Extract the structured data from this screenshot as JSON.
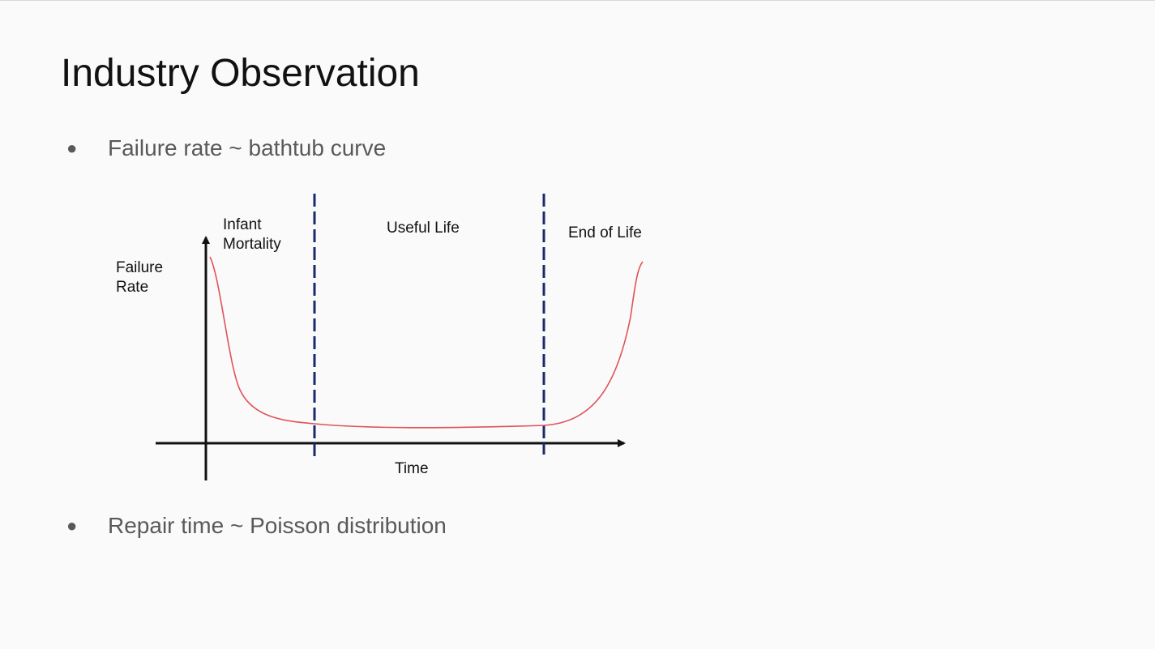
{
  "slide": {
    "title": "Industry Observation",
    "bullets": [
      {
        "text": "Failure rate ~ bathtub curve"
      },
      {
        "text": "Repair time ~ Poisson distribution"
      }
    ]
  },
  "figure": {
    "y_label_line1": "Failure",
    "y_label_line2": "Rate",
    "x_label": "Time",
    "regions": [
      {
        "line1": "Infant",
        "line2": "Mortality"
      },
      {
        "line1": "Useful Life",
        "line2": ""
      },
      {
        "line1": "End of Life",
        "line2": ""
      }
    ],
    "colors": {
      "curve": "#e0525a",
      "dividers": "#1c2a6b",
      "axes": "#111111"
    }
  }
}
